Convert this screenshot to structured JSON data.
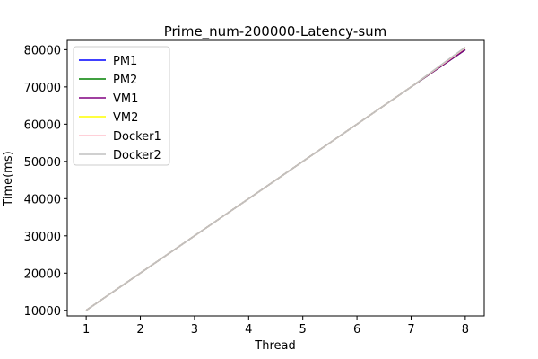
{
  "chart_data": {
    "type": "line",
    "title": "Prime_num-200000-Latency-sum",
    "xlabel": "Thread",
    "ylabel": "Time(ms)",
    "x": [
      1,
      2,
      3,
      4,
      5,
      6,
      7,
      8
    ],
    "xlim": [
      0.65,
      8.35
    ],
    "ylim": [
      8500,
      82500
    ],
    "x_ticks": [
      1,
      2,
      3,
      4,
      5,
      6,
      7,
      8
    ],
    "y_ticks": [
      10000,
      20000,
      30000,
      40000,
      50000,
      60000,
      70000,
      80000
    ],
    "grid": false,
    "legend_position": "upper-left",
    "series": [
      {
        "name": "PM1",
        "color": "#0000ff",
        "values": [
          10000,
          20000,
          30000,
          40000,
          50000,
          60000,
          70000,
          80000
        ]
      },
      {
        "name": "PM2",
        "color": "#008000",
        "values": [
          10000,
          20000,
          30000,
          40000,
          50000,
          60000,
          70000,
          80000
        ]
      },
      {
        "name": "VM1",
        "color": "#800080",
        "values": [
          10000,
          20000,
          30000,
          40000,
          50000,
          60000,
          70000,
          80000
        ]
      },
      {
        "name": "VM2",
        "color": "#ffff00",
        "values": [
          10000,
          20000,
          30000,
          40000,
          50000,
          60000,
          70000,
          80500
        ]
      },
      {
        "name": "Docker1",
        "color": "#ffc0cb",
        "values": [
          10000,
          20000,
          30000,
          40000,
          50000,
          60000,
          70000,
          80500
        ]
      },
      {
        "name": "Docker2",
        "color": "#c0c0c0",
        "values": [
          10000,
          20000,
          30000,
          40000,
          50000,
          60000,
          70000,
          80700
        ]
      }
    ]
  }
}
